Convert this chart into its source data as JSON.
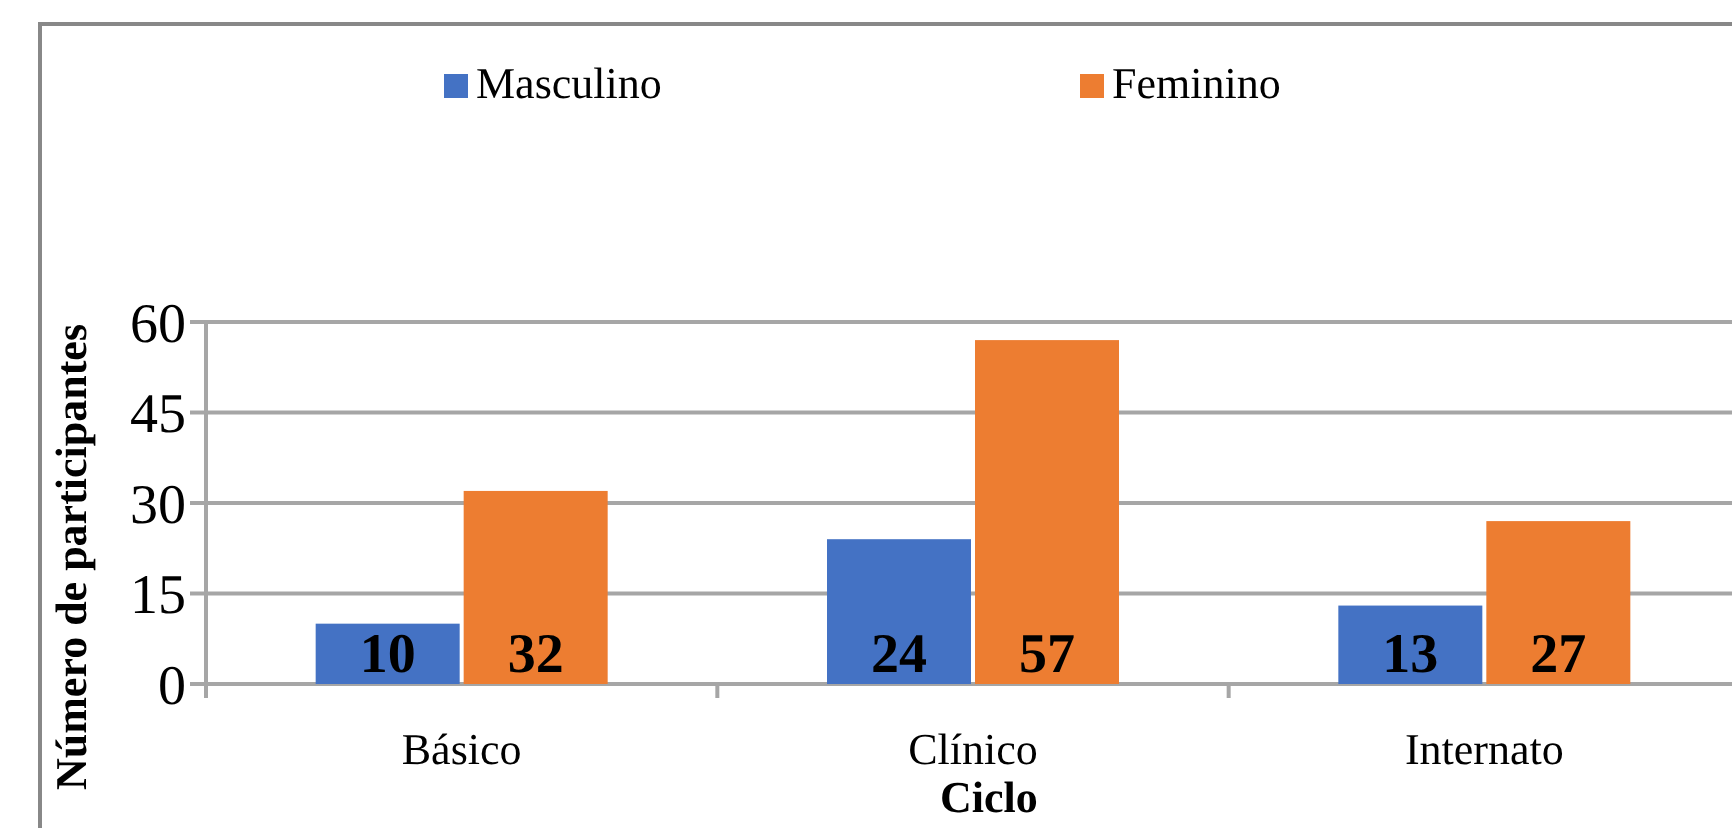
{
  "chart_data": {
    "type": "bar",
    "xlabel": "Ciclo",
    "ylabel": "Número de participantes",
    "categories": [
      "Básico",
      "Clínico",
      "Internato"
    ],
    "series": [
      {
        "name": "Masculino",
        "color": "#4472c4",
        "values": [
          10,
          24,
          13
        ]
      },
      {
        "name": "Feminino",
        "color": "#ed7d31",
        "values": [
          32,
          57,
          27
        ]
      }
    ],
    "ylim": [
      0,
      60
    ],
    "yticks": [
      0,
      15,
      30,
      45,
      60
    ],
    "grid": "y",
    "legend": "top",
    "data_labels": true
  }
}
